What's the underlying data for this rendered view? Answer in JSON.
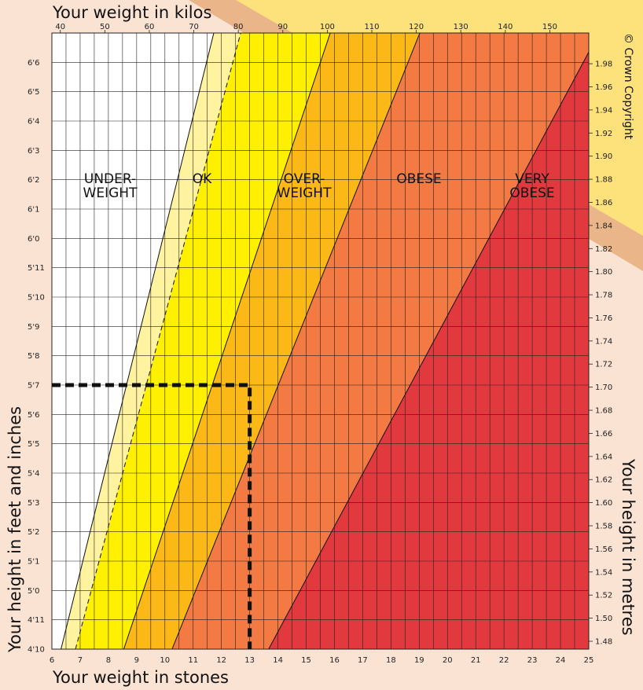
{
  "chart_data": {
    "type": "area",
    "title": "",
    "top_axis": {
      "label": "Your weight in kilos",
      "ticks": [
        40,
        50,
        60,
        70,
        80,
        90,
        100,
        110,
        120,
        130,
        140,
        150
      ]
    },
    "bottom_axis": {
      "label": "Your weight in stones",
      "range": [
        6,
        25
      ],
      "ticks": [
        "6",
        "7",
        "8",
        "9",
        "10",
        "11",
        "12",
        "13",
        "14",
        "15",
        "16",
        "17",
        "18",
        "19",
        "20",
        "21",
        "22",
        "23",
        "24",
        "25"
      ]
    },
    "left_axis": {
      "label": "Your height in feet and inches",
      "range_inches": [
        58,
        79
      ],
      "ticks": [
        "4'10",
        "4'11",
        "5'0",
        "5'1",
        "5'2",
        "5'3",
        "5'4",
        "5'5",
        "5'6",
        "5'7",
        "5'8",
        "5'9",
        "5'10",
        "5'11",
        "6'0",
        "6'1",
        "6'2",
        "6'3",
        "6'4",
        "6'5",
        "6'6"
      ]
    },
    "right_axis": {
      "label": "Your height in metres",
      "ticks": [
        "1.48",
        "1.50",
        "1.52",
        "1.54",
        "1.56",
        "1.58",
        "1.60",
        "1.62",
        "1.64",
        "1.66",
        "1.68",
        "1.70",
        "1.72",
        "1.74",
        "1.76",
        "1.78",
        "1.80",
        "1.82",
        "1.84",
        "1.86",
        "1.88",
        "1.90",
        "1.92",
        "1.94",
        "1.96",
        "1.98"
      ]
    },
    "zones": [
      {
        "label_lines": [
          "UNDER-",
          "WEIGHT"
        ],
        "color": "#ffffff"
      },
      {
        "label_lines": [
          "",
          ""
        ],
        "color": "#fff3a0"
      },
      {
        "label_lines": [
          "OK",
          ""
        ],
        "color": "#fff000"
      },
      {
        "label_lines": [
          "OVER-",
          "WEIGHT"
        ],
        "color": "#fbb817"
      },
      {
        "label_lines": [
          "OBESE",
          ""
        ],
        "color": "#f37a42"
      },
      {
        "label_lines": [
          "VERY",
          "OBESE"
        ],
        "color": "#e2393f"
      }
    ],
    "boundary_lines_bmi": [
      18.5,
      20,
      25,
      30,
      40
    ],
    "dashed_boundary_bmi": 20,
    "example": {
      "height": "5'7",
      "weight_stones": 13
    },
    "copyright": "© Crown Copyright",
    "grid": true
  }
}
